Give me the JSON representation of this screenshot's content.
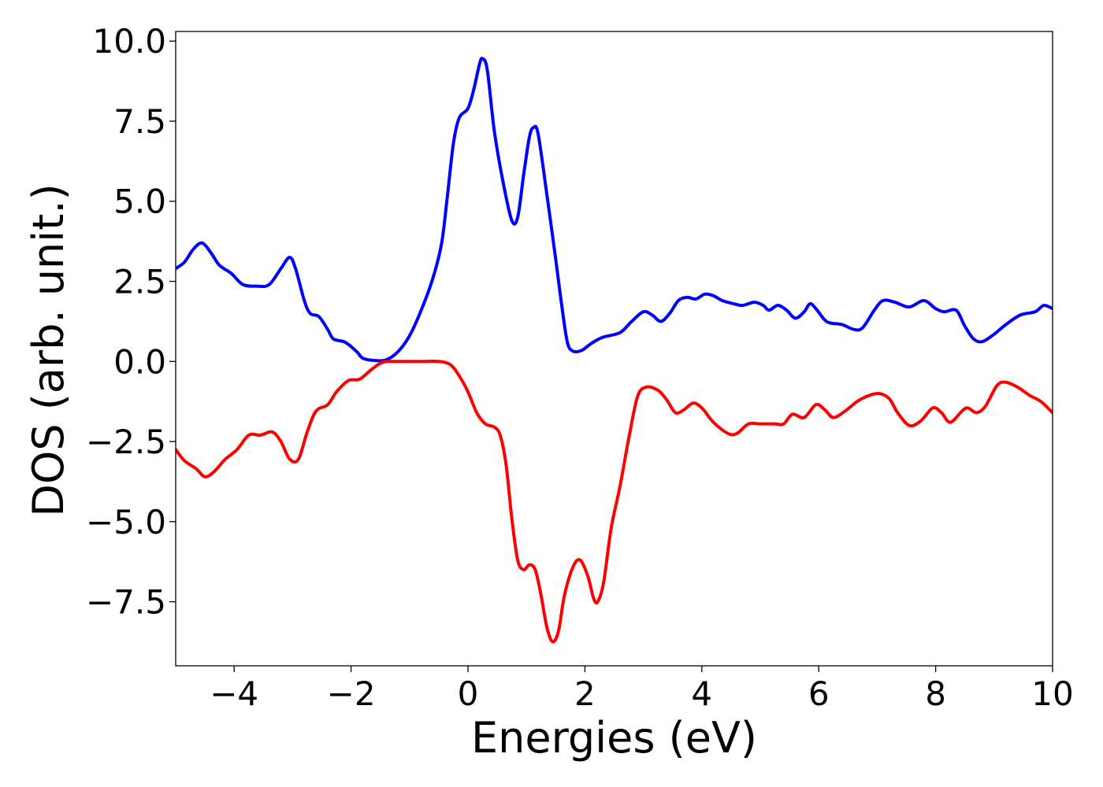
{
  "chart_data": {
    "type": "line",
    "title": "",
    "xlabel": "Energies (eV)",
    "ylabel": "DOS (arb. unit.)",
    "xlim": [
      -5,
      10
    ],
    "ylim": [
      -9.5,
      10.3
    ],
    "x_ticks": [
      -4,
      -2,
      0,
      2,
      4,
      6,
      8,
      10
    ],
    "x_tick_labels": [
      "−4",
      "−2",
      "0",
      "2",
      "4",
      "6",
      "8",
      "10"
    ],
    "y_ticks": [
      10.0,
      7.5,
      5.0,
      2.5,
      0.0,
      -2.5,
      -5.0,
      -7.5
    ],
    "y_tick_labels": [
      "10.0",
      "7.5",
      "5.0",
      "2.5",
      "0.0",
      "−2.5",
      "−5.0",
      "−7.5"
    ],
    "grid": false,
    "legend": "none",
    "series": [
      {
        "color": "#0000ff",
        "points": [
          [
            -5.0,
            2.9
          ],
          [
            -4.85,
            3.1
          ],
          [
            -4.7,
            3.5
          ],
          [
            -4.55,
            3.7
          ],
          [
            -4.4,
            3.4
          ],
          [
            -4.25,
            3.0
          ],
          [
            -4.05,
            2.75
          ],
          [
            -3.85,
            2.4
          ],
          [
            -3.6,
            2.35
          ],
          [
            -3.4,
            2.4
          ],
          [
            -3.2,
            2.9
          ],
          [
            -3.05,
            3.25
          ],
          [
            -2.95,
            2.9
          ],
          [
            -2.8,
            1.9
          ],
          [
            -2.7,
            1.5
          ],
          [
            -2.55,
            1.4
          ],
          [
            -2.4,
            1.0
          ],
          [
            -2.3,
            0.7
          ],
          [
            -2.1,
            0.6
          ],
          [
            -1.9,
            0.3
          ],
          [
            -1.8,
            0.1
          ],
          [
            -1.6,
            0.03
          ],
          [
            -1.4,
            0.05
          ],
          [
            -1.2,
            0.3
          ],
          [
            -1.0,
            0.8
          ],
          [
            -0.8,
            1.6
          ],
          [
            -0.6,
            2.6
          ],
          [
            -0.45,
            3.7
          ],
          [
            -0.35,
            5.2
          ],
          [
            -0.25,
            6.8
          ],
          [
            -0.15,
            7.6
          ],
          [
            0.0,
            7.9
          ],
          [
            0.1,
            8.5
          ],
          [
            0.2,
            9.3
          ],
          [
            0.25,
            9.45
          ],
          [
            0.33,
            9.1
          ],
          [
            0.45,
            7.2
          ],
          [
            0.6,
            5.6
          ],
          [
            0.75,
            4.4
          ],
          [
            0.85,
            4.5
          ],
          [
            0.95,
            5.8
          ],
          [
            1.05,
            7.0
          ],
          [
            1.12,
            7.3
          ],
          [
            1.2,
            7.1
          ],
          [
            1.35,
            5.2
          ],
          [
            1.5,
            3.2
          ],
          [
            1.6,
            1.8
          ],
          [
            1.7,
            0.6
          ],
          [
            1.8,
            0.32
          ],
          [
            1.95,
            0.35
          ],
          [
            2.1,
            0.55
          ],
          [
            2.3,
            0.75
          ],
          [
            2.6,
            0.9
          ],
          [
            2.8,
            1.25
          ],
          [
            3.0,
            1.55
          ],
          [
            3.15,
            1.45
          ],
          [
            3.3,
            1.25
          ],
          [
            3.45,
            1.5
          ],
          [
            3.6,
            1.9
          ],
          [
            3.75,
            2.0
          ],
          [
            3.9,
            1.95
          ],
          [
            4.05,
            2.1
          ],
          [
            4.2,
            2.05
          ],
          [
            4.35,
            1.9
          ],
          [
            4.55,
            1.8
          ],
          [
            4.7,
            1.75
          ],
          [
            4.9,
            1.85
          ],
          [
            5.05,
            1.75
          ],
          [
            5.15,
            1.6
          ],
          [
            5.3,
            1.75
          ],
          [
            5.45,
            1.6
          ],
          [
            5.6,
            1.35
          ],
          [
            5.75,
            1.55
          ],
          [
            5.85,
            1.8
          ],
          [
            5.95,
            1.65
          ],
          [
            6.1,
            1.3
          ],
          [
            6.2,
            1.2
          ],
          [
            6.4,
            1.15
          ],
          [
            6.6,
            1.0
          ],
          [
            6.75,
            1.05
          ],
          [
            6.95,
            1.6
          ],
          [
            7.1,
            1.9
          ],
          [
            7.3,
            1.85
          ],
          [
            7.55,
            1.7
          ],
          [
            7.8,
            1.9
          ],
          [
            8.0,
            1.65
          ],
          [
            8.15,
            1.55
          ],
          [
            8.35,
            1.6
          ],
          [
            8.5,
            1.1
          ],
          [
            8.65,
            0.7
          ],
          [
            8.8,
            0.62
          ],
          [
            9.0,
            0.85
          ],
          [
            9.2,
            1.15
          ],
          [
            9.45,
            1.45
          ],
          [
            9.7,
            1.55
          ],
          [
            9.85,
            1.75
          ],
          [
            10.0,
            1.65
          ]
        ]
      },
      {
        "color": "#ff0000",
        "points": [
          [
            -5.0,
            -2.75
          ],
          [
            -4.85,
            -3.1
          ],
          [
            -4.65,
            -3.35
          ],
          [
            -4.5,
            -3.6
          ],
          [
            -4.35,
            -3.45
          ],
          [
            -4.15,
            -3.05
          ],
          [
            -3.95,
            -2.75
          ],
          [
            -3.75,
            -2.3
          ],
          [
            -3.55,
            -2.3
          ],
          [
            -3.35,
            -2.2
          ],
          [
            -3.2,
            -2.5
          ],
          [
            -3.05,
            -3.05
          ],
          [
            -2.9,
            -3.05
          ],
          [
            -2.75,
            -2.2
          ],
          [
            -2.6,
            -1.55
          ],
          [
            -2.4,
            -1.35
          ],
          [
            -2.25,
            -0.95
          ],
          [
            -2.05,
            -0.6
          ],
          [
            -1.85,
            -0.55
          ],
          [
            -1.65,
            -0.25
          ],
          [
            -1.45,
            -0.02
          ],
          [
            -1.2,
            0.0
          ],
          [
            -0.8,
            0.0
          ],
          [
            -0.5,
            0.0
          ],
          [
            -0.3,
            -0.1
          ],
          [
            -0.15,
            -0.45
          ],
          [
            0.0,
            -0.95
          ],
          [
            0.15,
            -1.6
          ],
          [
            0.3,
            -1.95
          ],
          [
            0.45,
            -2.05
          ],
          [
            0.55,
            -2.3
          ],
          [
            0.65,
            -3.2
          ],
          [
            0.75,
            -4.9
          ],
          [
            0.85,
            -6.2
          ],
          [
            0.95,
            -6.5
          ],
          [
            1.05,
            -6.35
          ],
          [
            1.15,
            -6.5
          ],
          [
            1.25,
            -7.3
          ],
          [
            1.35,
            -8.3
          ],
          [
            1.45,
            -8.75
          ],
          [
            1.55,
            -8.4
          ],
          [
            1.65,
            -7.3
          ],
          [
            1.8,
            -6.4
          ],
          [
            1.92,
            -6.2
          ],
          [
            2.05,
            -6.7
          ],
          [
            2.15,
            -7.4
          ],
          [
            2.22,
            -7.5
          ],
          [
            2.32,
            -6.9
          ],
          [
            2.45,
            -5.2
          ],
          [
            2.6,
            -3.9
          ],
          [
            2.75,
            -2.4
          ],
          [
            2.9,
            -1.1
          ],
          [
            3.05,
            -0.8
          ],
          [
            3.25,
            -0.9
          ],
          [
            3.4,
            -1.2
          ],
          [
            3.55,
            -1.6
          ],
          [
            3.7,
            -1.5
          ],
          [
            3.85,
            -1.3
          ],
          [
            4.0,
            -1.45
          ],
          [
            4.2,
            -1.9
          ],
          [
            4.45,
            -2.25
          ],
          [
            4.6,
            -2.25
          ],
          [
            4.8,
            -1.95
          ],
          [
            5.0,
            -1.95
          ],
          [
            5.25,
            -1.95
          ],
          [
            5.4,
            -1.95
          ],
          [
            5.55,
            -1.65
          ],
          [
            5.75,
            -1.75
          ],
          [
            5.95,
            -1.35
          ],
          [
            6.1,
            -1.5
          ],
          [
            6.25,
            -1.75
          ],
          [
            6.45,
            -1.55
          ],
          [
            6.7,
            -1.2
          ],
          [
            7.0,
            -1.0
          ],
          [
            7.2,
            -1.15
          ],
          [
            7.35,
            -1.6
          ],
          [
            7.55,
            -2.0
          ],
          [
            7.75,
            -1.85
          ],
          [
            7.95,
            -1.45
          ],
          [
            8.1,
            -1.6
          ],
          [
            8.25,
            -1.9
          ],
          [
            8.45,
            -1.55
          ],
          [
            8.55,
            -1.45
          ],
          [
            8.7,
            -1.6
          ],
          [
            8.85,
            -1.4
          ],
          [
            9.05,
            -0.75
          ],
          [
            9.2,
            -0.65
          ],
          [
            9.4,
            -0.8
          ],
          [
            9.6,
            -1.05
          ],
          [
            9.8,
            -1.25
          ],
          [
            10.0,
            -1.6
          ]
        ]
      }
    ]
  }
}
